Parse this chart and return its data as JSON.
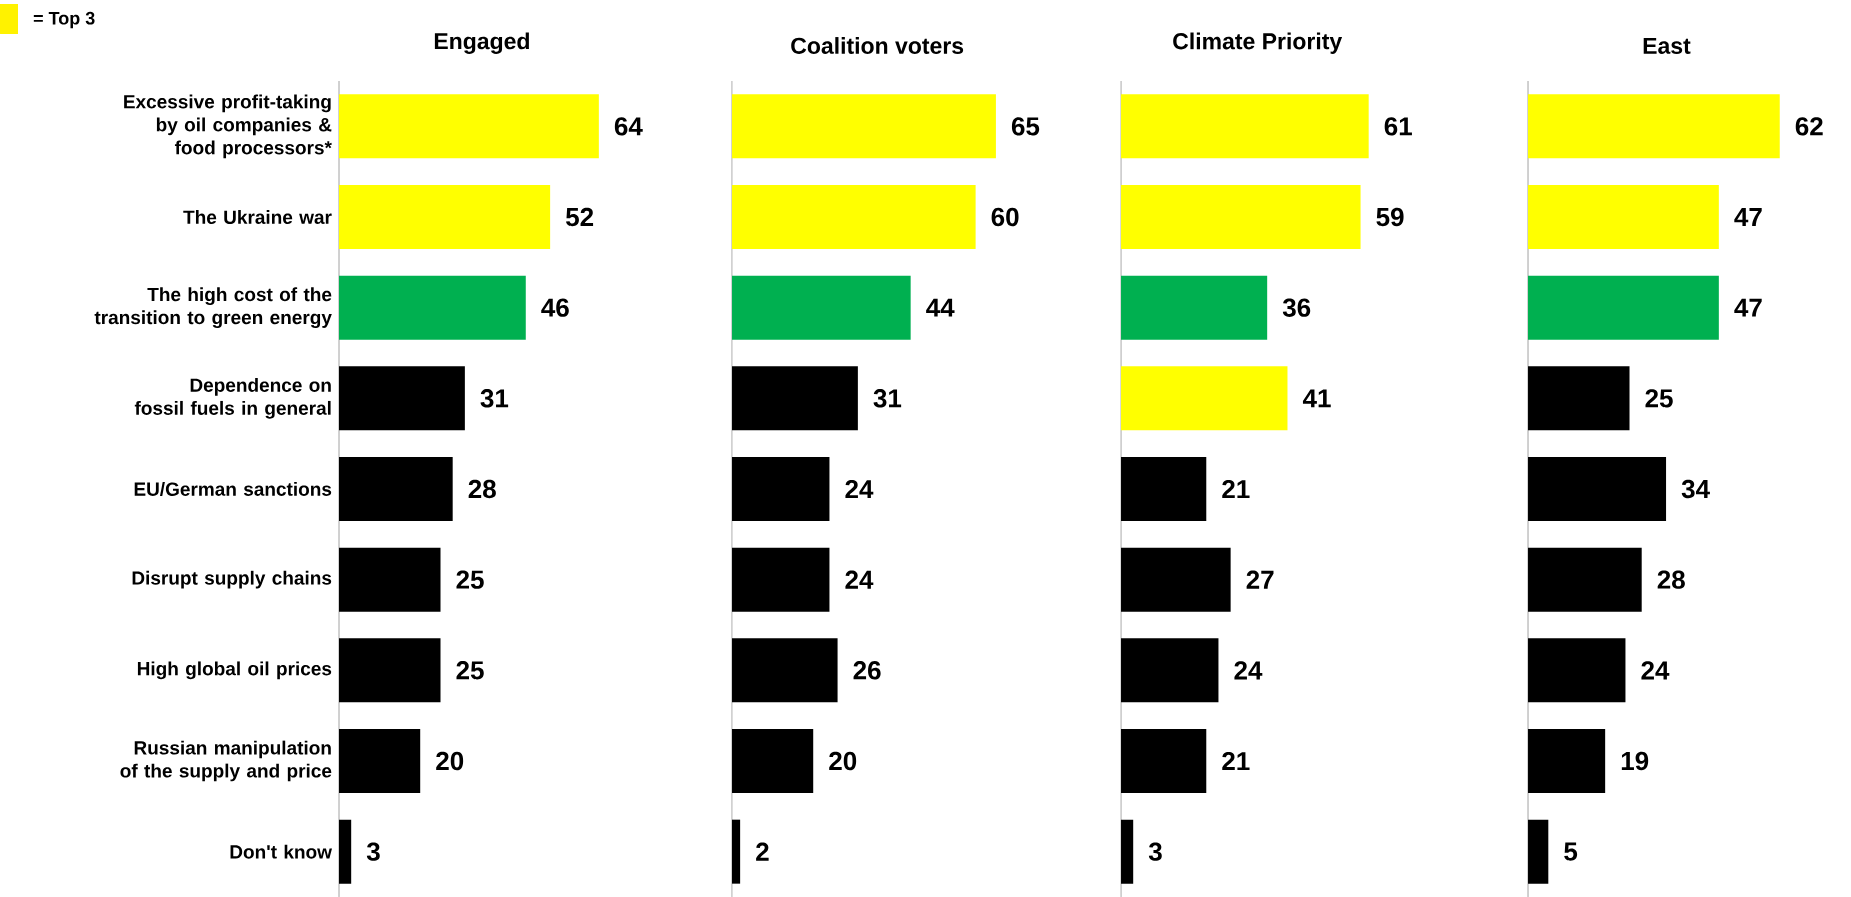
{
  "chart_data": [
    {
      "type": "bar",
      "orientation": "horizontal",
      "title": "Engaged",
      "categories": [
        "Excessive profit-taking by oil companies & food processors*",
        "The Ukraine war",
        "The high cost of the transition to green energy",
        "Dependence on fossil fuels in general",
        "EU/German sanctions",
        "Disrupt supply chains",
        "High global oil prices",
        "Russian manipulation of the supply and price",
        "Don't know"
      ],
      "values": [
        64,
        52,
        46,
        31,
        28,
        25,
        25,
        20,
        3
      ],
      "colors": [
        "#ffff00",
        "#ffff00",
        "#00b050",
        "#000000",
        "#000000",
        "#000000",
        "#000000",
        "#000000",
        "#000000"
      ],
      "data_labels": true,
      "tick_labels": "y",
      "annotations": [
        "= Top 3"
      ]
    },
    {
      "type": "bar",
      "orientation": "horizontal",
      "title": "Coalition voters",
      "categories": [
        null,
        null,
        null,
        null,
        null,
        null,
        null,
        null,
        null
      ],
      "values": [
        65,
        60,
        44,
        31,
        24,
        24,
        26,
        20,
        2
      ],
      "colors": [
        "#ffff00",
        "#ffff00",
        "#00b050",
        "#000000",
        "#000000",
        "#000000",
        "#000000",
        "#000000",
        "#000000"
      ],
      "data_labels": true,
      "tick_labels": false
    },
    {
      "type": "bar",
      "orientation": "horizontal",
      "title": "Climate Priority",
      "categories": [
        null,
        null,
        null,
        null,
        null,
        null,
        null,
        null,
        null
      ],
      "values": [
        61,
        59,
        36,
        41,
        21,
        27,
        24,
        21,
        3
      ],
      "colors": [
        "#ffff00",
        "#ffff00",
        "#00b050",
        "#ffff00",
        "#000000",
        "#000000",
        "#000000",
        "#000000",
        "#000000"
      ],
      "data_labels": true,
      "tick_labels": false
    },
    {
      "type": "bar",
      "orientation": "horizontal",
      "title": "East",
      "categories": [
        null,
        null,
        null,
        null,
        null,
        null,
        null,
        null,
        null
      ],
      "values": [
        62,
        47,
        47,
        25,
        34,
        28,
        24,
        19,
        5
      ],
      "colors": [
        "#ffff00",
        "#ffff00",
        "#00b050",
        "#000000",
        "#000000",
        "#000000",
        "#000000",
        "#000000",
        "#000000"
      ],
      "data_labels": true,
      "tick_labels": false
    }
  ]
}
